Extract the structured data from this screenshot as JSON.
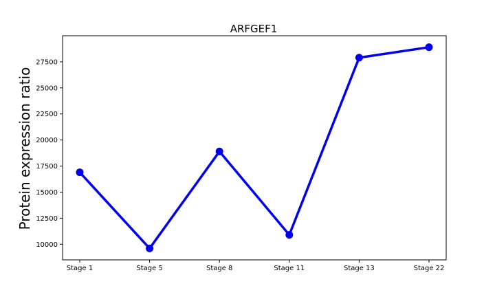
{
  "chart_data": {
    "type": "line",
    "title": "ARFGEF1",
    "xlabel": "",
    "ylabel": "Protein expression ratio",
    "categories": [
      "Stage 1",
      "Stage 5",
      "Stage 8",
      "Stage 11",
      "Stage 13",
      "Stage 22"
    ],
    "series": [
      {
        "values": [
          16900,
          9600,
          18900,
          10900,
          27900,
          28900
        ],
        "color": "#0000ee"
      }
    ],
    "ylim": [
      8500,
      30000
    ],
    "yticks": [
      10000,
      12500,
      15000,
      17500,
      20000,
      22500,
      25000,
      27500
    ],
    "ytick_labels": [
      "10000",
      "12500",
      "15000",
      "17500",
      "20000",
      "22500",
      "25000",
      "27500"
    ],
    "grid": false,
    "legend": "none"
  }
}
